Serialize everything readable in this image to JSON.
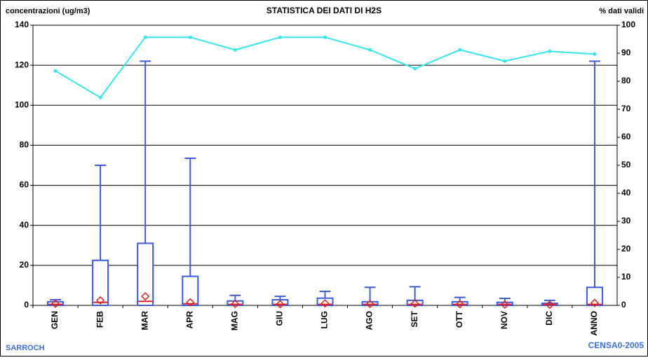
{
  "chart_data": {
    "type": "box",
    "title": "STATISTICA DEI DATI DI H2S",
    "y_label": "concentrazioni (ug/m3)",
    "y2_label": "% dati validi",
    "footer_left": "SARROCH",
    "footer_right": "CENSA0-2005",
    "categories": [
      "GEN",
      "FEB",
      "MAR",
      "APR",
      "MAG",
      "GIU",
      "LUG",
      "AGO",
      "SET",
      "OTT",
      "NOV",
      "DIC",
      "ANNO"
    ],
    "boxes": {
      "color": "#3b5bdb",
      "max": [
        2.8,
        70,
        122,
        73.5,
        5,
        4.5,
        7,
        9,
        9.3,
        4,
        3.5,
        2.5,
        122
      ],
      "q3": [
        1.8,
        22.5,
        31,
        14.5,
        2.2,
        2.8,
        3.6,
        1.8,
        2.5,
        1.8,
        1.5,
        1,
        9
      ],
      "q1": [
        0,
        0,
        0,
        0,
        0,
        0,
        0,
        0,
        0,
        0,
        0,
        0,
        0
      ],
      "median": [
        0.5,
        1.5,
        2,
        0.8,
        0.5,
        0.5,
        0.5,
        0.5,
        0.5,
        0.5,
        0.5,
        0.5,
        0.5
      ],
      "median_color": "#e02020",
      "mean": [
        0.8,
        2.5,
        4.5,
        1.5,
        0.7,
        0.6,
        1,
        0.7,
        0.9,
        0.6,
        0.4,
        0.3,
        1.2
      ],
      "mean_color": "#e02020"
    },
    "series": [
      {
        "color": "#33e6f0",
        "axis": "y2",
        "values": [
          83.7,
          74.2,
          95.7,
          95.7,
          91.2,
          95.7,
          95.7,
          91.2,
          84.5,
          91.2,
          87.2,
          90.7,
          89.7
        ]
      }
    ],
    "ylim": [
      0,
      140
    ],
    "yticks": [
      0,
      20,
      40,
      60,
      80,
      100,
      120,
      140
    ],
    "y2lim": [
      0,
      100
    ],
    "y2ticks": [
      0,
      10,
      20,
      30,
      40,
      50,
      60,
      70,
      80,
      90,
      100
    ],
    "grid": true
  }
}
